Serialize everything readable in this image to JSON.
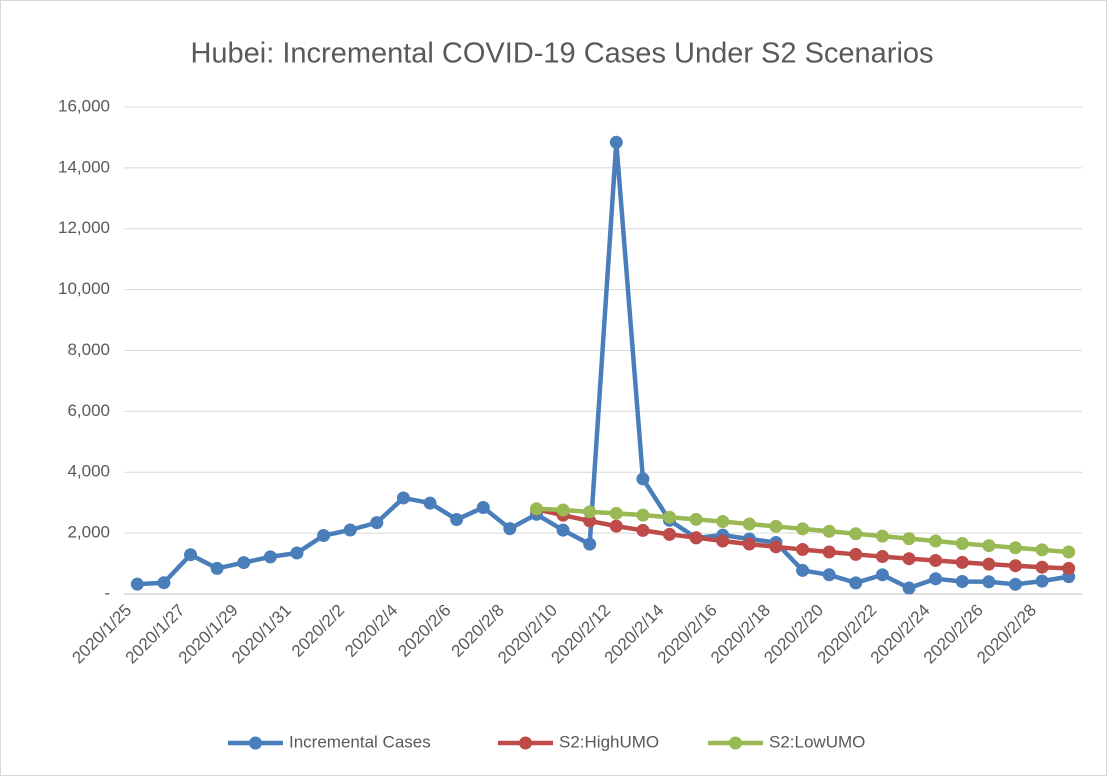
{
  "chart_data": {
    "type": "line",
    "title": "Hubei: Incremental COVID-19 Cases Under S2 Scenarios",
    "categories": [
      "2020/1/25",
      null,
      "2020/1/27",
      null,
      "2020/1/29",
      null,
      "2020/1/31",
      null,
      "2020/2/2",
      null,
      "2020/2/4",
      null,
      "2020/2/6",
      null,
      "2020/2/8",
      null,
      "2020/2/10",
      null,
      "2020/2/12",
      null,
      "2020/2/14",
      null,
      "2020/2/16",
      null,
      "2020/2/18",
      null,
      "2020/2/20",
      null,
      "2020/2/22",
      null,
      "2020/2/24",
      null,
      "2020/2/26",
      null,
      "2020/2/28",
      null
    ],
    "series": [
      {
        "name": "Incremental Cases",
        "color": "#4a7ebb",
        "values": [
          323,
          371,
          1291,
          840,
          1032,
          1220,
          1347,
          1921,
          2103,
          2345,
          3156,
          2987,
          2447,
          2841,
          2147,
          2618,
          2097,
          1638,
          14840,
          3781,
          2420,
          1843,
          1933,
          1807,
          1693,
          775,
          631,
          366,
          630,
          196,
          499,
          411,
          401,
          318,
          423,
          570
        ]
      },
      {
        "name": "S2:HighUMO",
        "color": "#be4b48",
        "values": [
          null,
          null,
          null,
          null,
          null,
          null,
          null,
          null,
          null,
          null,
          null,
          null,
          null,
          null,
          null,
          2780,
          2590,
          2400,
          2230,
          2090,
          1960,
          1850,
          1740,
          1640,
          1550,
          1460,
          1380,
          1300,
          1230,
          1160,
          1100,
          1040,
          980,
          930,
          880,
          840
        ]
      },
      {
        "name": "S2:LowUMO",
        "color": "#98b954",
        "values": [
          null,
          null,
          null,
          null,
          null,
          null,
          null,
          null,
          null,
          null,
          null,
          null,
          null,
          null,
          null,
          2800,
          2760,
          2700,
          2650,
          2590,
          2520,
          2450,
          2380,
          2300,
          2220,
          2140,
          2060,
          1980,
          1900,
          1820,
          1740,
          1660,
          1590,
          1520,
          1450,
          1380
        ]
      }
    ],
    "ylim": [
      0,
      16000
    ],
    "yticks": [
      {
        "value": 0,
        "label": "-"
      },
      {
        "value": 2000,
        "label": "2,000"
      },
      {
        "value": 4000,
        "label": "4,000"
      },
      {
        "value": 6000,
        "label": "6,000"
      },
      {
        "value": 8000,
        "label": "8,000"
      },
      {
        "value": 10000,
        "label": "10,000"
      },
      {
        "value": 12000,
        "label": "12,000"
      },
      {
        "value": 14000,
        "label": "14,000"
      },
      {
        "value": 16000,
        "label": "16,000"
      }
    ],
    "grid": true,
    "legend": "bottom"
  }
}
